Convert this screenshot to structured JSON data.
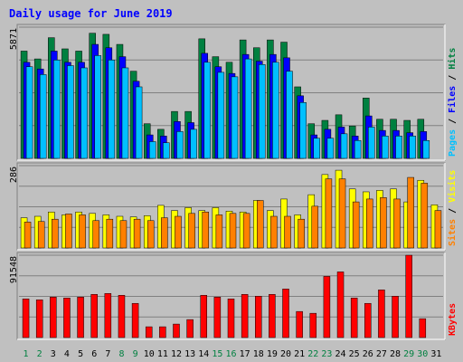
{
  "title": "Daily usage for June 2019",
  "colors": {
    "hits": "#008040",
    "files": "#0000ff",
    "pages": "#00c0ff",
    "visits": "#ffff00",
    "sites": "#ff8000",
    "kbytes": "#ff0000",
    "title": "#0000ff",
    "weekend": "#008040",
    "weekday": "#0000ff"
  },
  "chart_data": [
    {
      "type": "bar",
      "title": "Daily usage for June 2019",
      "categories": [
        "1",
        "2",
        "3",
        "4",
        "5",
        "6",
        "7",
        "8",
        "9",
        "10",
        "11",
        "12",
        "13",
        "14",
        "15",
        "16",
        "17",
        "18",
        "19",
        "20",
        "21",
        "22",
        "23",
        "24",
        "25",
        "26",
        "27",
        "28",
        "29",
        "30",
        "31"
      ],
      "weekend_days": [
        "1",
        "2",
        "8",
        "9",
        "15",
        "16",
        "22",
        "23",
        "29",
        "30"
      ],
      "ymax_label": "5871",
      "ylim": [
        0,
        5871
      ],
      "grid": true,
      "right_label_parts": [
        "Pages",
        "Files",
        "Hits"
      ],
      "series": [
        {
          "name": "Hits",
          "color": "#008040",
          "values": [
            4800,
            4450,
            5400,
            4900,
            4800,
            5600,
            5550,
            5100,
            3900,
            1550,
            1300,
            2100,
            2100,
            5350,
            4550,
            4300,
            5300,
            4950,
            5300,
            5200,
            3200,
            1550,
            1700,
            1950,
            1450,
            2700,
            1750,
            1750,
            1700,
            1750,
            0
          ],
          "offsets": [
            -2,
            -2,
            -2,
            -2,
            -2,
            -2,
            -2,
            -2,
            -2,
            -2,
            -2,
            -2,
            -2,
            -2,
            -2,
            -2,
            -2,
            -2,
            -2,
            -2,
            -2,
            -2,
            -2,
            -2,
            -2,
            -2,
            -2,
            -2,
            -2,
            -2,
            0
          ]
        },
        {
          "name": "Files",
          "color": "#0000ff",
          "values": [
            4300,
            4000,
            4800,
            4300,
            4300,
            5100,
            4950,
            4550,
            3450,
            1050,
            1000,
            1650,
            1600,
            4700,
            4100,
            3800,
            4650,
            4350,
            4650,
            4500,
            2800,
            1050,
            1300,
            1400,
            1000,
            1900,
            1250,
            1250,
            1150,
            1200,
            0
          ],
          "offsets": [
            1,
            1,
            1,
            1,
            1,
            1,
            1,
            1,
            1,
            1,
            1,
            1,
            1,
            1,
            1,
            1,
            1,
            1,
            1,
            1,
            1,
            1,
            1,
            1,
            1,
            1,
            1,
            1,
            1,
            1,
            0
          ]
        },
        {
          "name": "Pages",
          "color": "#00c0ff",
          "values": [
            4100,
            3750,
            4400,
            4150,
            4050,
            4600,
            4400,
            4050,
            3200,
            750,
            700,
            1200,
            1300,
            4300,
            3850,
            3650,
            4450,
            4200,
            4300,
            3900,
            2500,
            900,
            900,
            1100,
            800,
            1400,
            1000,
            1000,
            1000,
            800,
            0
          ],
          "offsets": [
            4,
            4,
            4,
            4,
            4,
            4,
            4,
            4,
            4,
            4,
            4,
            4,
            4,
            4,
            4,
            4,
            4,
            4,
            4,
            4,
            4,
            4,
            4,
            4,
            4,
            4,
            4,
            4,
            4,
            4,
            0
          ]
        }
      ]
    },
    {
      "type": "bar",
      "categories": [
        "1",
        "2",
        "3",
        "4",
        "5",
        "6",
        "7",
        "8",
        "9",
        "10",
        "11",
        "12",
        "13",
        "14",
        "15",
        "16",
        "17",
        "18",
        "19",
        "20",
        "21",
        "22",
        "23",
        "24",
        "25",
        "26",
        "27",
        "28",
        "29",
        "30",
        "31"
      ],
      "ymax_label": "286",
      "ylim": [
        0,
        286
      ],
      "grid": true,
      "right_label_parts": [
        "Sites",
        "Visits"
      ],
      "series": [
        {
          "name": "Visits",
          "color": "#ffff00",
          "values": [
            105,
            110,
            125,
            115,
            125,
            120,
            115,
            110,
            108,
            112,
            148,
            130,
            140,
            130,
            140,
            128,
            125,
            165,
            130,
            170,
            115,
            185,
            255,
            270,
            205,
            195,
            200,
            205,
            160,
            235,
            150
          ],
          "offsets": [
            -2,
            -2,
            -2,
            -2,
            -2,
            -2,
            -2,
            -2,
            -2,
            -2,
            -2,
            -2,
            -2,
            -2,
            -2,
            -2,
            -2,
            -2,
            -2,
            -2,
            -2,
            -2,
            -2,
            -2,
            -2,
            -2,
            -2,
            -2,
            -2,
            -2,
            -2
          ]
        },
        {
          "name": "Sites",
          "color": "#ff8000",
          "values": [
            90,
            92,
            100,
            118,
            115,
            95,
            100,
            95,
            100,
            95,
            105,
            110,
            120,
            125,
            115,
            120,
            120,
            165,
            110,
            110,
            100,
            145,
            240,
            240,
            160,
            170,
            175,
            170,
            245,
            225,
            130
          ],
          "offsets": [
            2,
            2,
            2,
            2,
            2,
            2,
            2,
            2,
            2,
            2,
            2,
            2,
            2,
            2,
            2,
            2,
            2,
            2,
            2,
            2,
            2,
            2,
            2,
            2,
            2,
            2,
            2,
            2,
            2,
            2,
            2
          ]
        }
      ]
    },
    {
      "type": "bar",
      "categories": [
        "1",
        "2",
        "3",
        "4",
        "5",
        "6",
        "7",
        "8",
        "9",
        "10",
        "11",
        "12",
        "13",
        "14",
        "15",
        "16",
        "17",
        "18",
        "19",
        "20",
        "21",
        "22",
        "23",
        "24",
        "25",
        "26",
        "27",
        "28",
        "29",
        "30",
        "31"
      ],
      "ymax_label": "91548",
      "ylim": [
        0,
        91548
      ],
      "grid": true,
      "right_label_parts": [
        "KBytes"
      ],
      "series": [
        {
          "name": "KBytes",
          "color": "#ff0000",
          "values": [
            43000,
            42000,
            45000,
            44000,
            45000,
            48000,
            49000,
            47000,
            38000,
            12000,
            12000,
            15000,
            20000,
            47000,
            45000,
            43000,
            48000,
            46000,
            48000,
            54000,
            29000,
            27000,
            68000,
            73000,
            44000,
            38000,
            53000,
            46000,
            91548,
            21000,
            0
          ],
          "offsets": [
            0,
            0,
            0,
            0,
            0,
            0,
            0,
            0,
            0,
            0,
            0,
            0,
            0,
            0,
            0,
            0,
            0,
            0,
            0,
            0,
            0,
            0,
            0,
            0,
            0,
            0,
            0,
            0,
            0,
            0,
            0
          ]
        }
      ]
    }
  ]
}
